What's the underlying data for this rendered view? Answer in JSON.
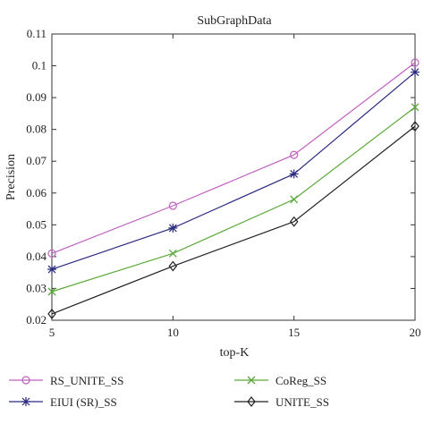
{
  "chart_data": {
    "type": "line",
    "title": "SubGraphData",
    "xlabel": "top-K",
    "ylabel": "Precision",
    "x": [
      5,
      10,
      15,
      20
    ],
    "x_ticks": [
      "5",
      "10",
      "15",
      "20"
    ],
    "y_ticks": [
      "0.02",
      "0.03",
      "0.04",
      "0.05",
      "0.06",
      "0.07",
      "0.08",
      "0.09",
      "0.1",
      "0.11"
    ],
    "xlim": [
      5,
      20
    ],
    "ylim": [
      0.02,
      0.11
    ],
    "grid": false,
    "legend_position": "below",
    "series": [
      {
        "name": "RS_UNITE_SS",
        "values": [
          0.041,
          0.056,
          0.072,
          0.101
        ],
        "color": "#c060c0",
        "marker": "circle"
      },
      {
        "name": "EIUI (SR)_SS",
        "values": [
          0.036,
          0.049,
          0.066,
          0.098
        ],
        "color": "#2a2a80",
        "marker": "star"
      },
      {
        "name": "CoReg_SS",
        "values": [
          0.029,
          0.041,
          0.058,
          0.087
        ],
        "color": "#5aaa3a",
        "marker": "x"
      },
      {
        "name": "UNITE_SS",
        "values": [
          0.022,
          0.037,
          0.051,
          0.081
        ],
        "color": "#222222",
        "marker": "diamond"
      }
    ]
  }
}
